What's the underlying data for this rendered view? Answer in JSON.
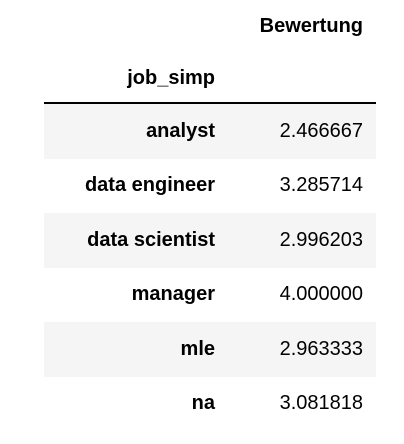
{
  "table": {
    "column_header": "Bewertung",
    "index_name": "job_simp",
    "rows": [
      {
        "index": "analyst",
        "value": "2.466667"
      },
      {
        "index": "data engineer",
        "value": "3.285714"
      },
      {
        "index": "data scientist",
        "value": "2.996203"
      },
      {
        "index": "manager",
        "value": "4.000000"
      },
      {
        "index": "mle",
        "value": "2.963333"
      },
      {
        "index": "na",
        "value": "3.081818"
      }
    ]
  },
  "chart_data": {
    "type": "table",
    "columns": [
      "Bewertung"
    ],
    "index_name": "job_simp",
    "categories": [
      "analyst",
      "data engineer",
      "data scientist",
      "manager",
      "mle",
      "na"
    ],
    "values": [
      2.466667,
      3.285714,
      2.996203,
      4.0,
      2.963333,
      3.081818
    ]
  },
  "colors": {
    "stripe": "#f5f5f5",
    "rule": "#000000"
  }
}
